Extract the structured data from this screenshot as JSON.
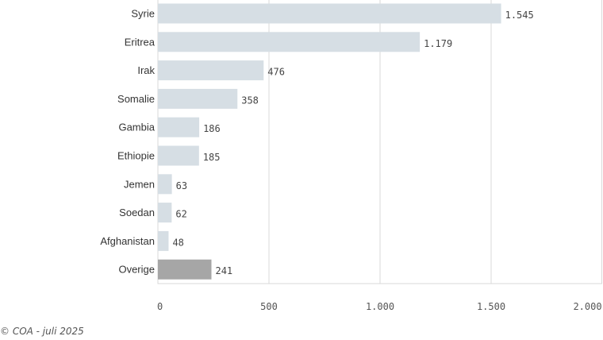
{
  "chart_data": {
    "type": "bar",
    "orientation": "horizontal",
    "categories": [
      "Syrie",
      "Eritrea",
      "Irak",
      "Somalie",
      "Gambia",
      "Ethiopie",
      "Jemen",
      "Soedan",
      "Afghanistan",
      "Overige"
    ],
    "values": [
      1545,
      1179,
      476,
      358,
      186,
      185,
      63,
      62,
      48,
      241
    ],
    "value_labels": [
      "1.545",
      "1.179",
      "476",
      "358",
      "186",
      "185",
      "63",
      "62",
      "48",
      "241"
    ],
    "xlim": [
      0,
      2000
    ],
    "x_ticks": [
      0,
      500,
      1000,
      1500,
      2000
    ],
    "x_tick_labels": [
      "0",
      "500",
      "1.000",
      "1.500",
      "2.000"
    ],
    "grid": "vertical",
    "colors": {
      "bar": "#d6dee4",
      "highlight_bar": "#a6a6a6",
      "highlight_category": "Overige",
      "grid": "#d9d9d9"
    }
  },
  "footer": {
    "credit": "© COA - juli 2025"
  }
}
